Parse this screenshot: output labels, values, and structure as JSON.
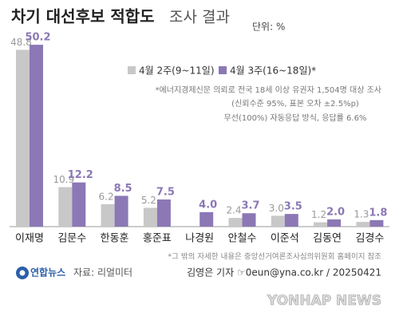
{
  "chart_data": {
    "type": "bar",
    "title": "차기 대선후보 적합도",
    "subtitle": "조사 결과",
    "unit": "단위: %",
    "categories": [
      "이재명",
      "김문수",
      "한동훈",
      "홍준표",
      "나경원",
      "안철수",
      "이준석",
      "김동연",
      "김경수"
    ],
    "series": [
      {
        "name": "4월 2주(9~11일)",
        "color": "#c8c8c8",
        "values": [
          48.8,
          10.9,
          6.2,
          5.2,
          null,
          2.4,
          3.0,
          1.2,
          1.3
        ],
        "value_labels": [
          "48.8",
          "10.9",
          "6.2",
          "5.2",
          null,
          "2.4",
          "3.0",
          "1.2",
          "1.3"
        ]
      },
      {
        "name": "4월 3주(16~18일)*",
        "color": "#8b78b5",
        "values": [
          50.2,
          12.2,
          8.5,
          7.5,
          4.0,
          3.7,
          3.5,
          2.0,
          1.8
        ],
        "value_labels": [
          "50.2",
          "12.2",
          "8.5",
          "7.5",
          "4.0",
          "3.7",
          "3.5",
          "2.0",
          "1.8"
        ]
      }
    ],
    "notes": [
      "*에너지경제신문 의뢰로 전국 18세 이상 유권자 1,504명 대상 조사",
      "(신뢰수준 95%, 표본 오차 ±2.5%p)",
      "무선(100%) 자동응답 방식, 응답률 6.6%"
    ],
    "footnote": "*그 밖의 자세한 내용은 중앙선거여론조사심의위원회 홈페이지 참조",
    "agency": "연합뉴스",
    "source": "자료: 리얼미터",
    "credit": "김영은 기자 ☞0eun@yna.co.kr / 20250421",
    "watermark": "YONHAP NEWS"
  }
}
